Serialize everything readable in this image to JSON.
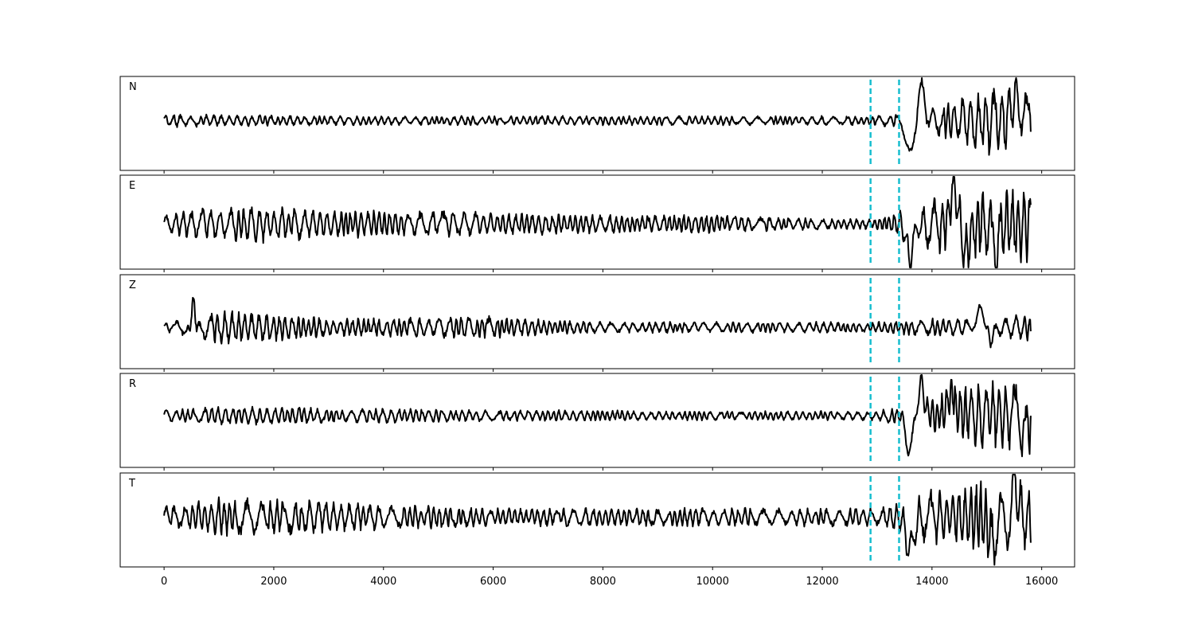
{
  "chart_data": {
    "type": "line",
    "x_ticks": [
      0,
      2000,
      4000,
      6000,
      8000,
      10000,
      12000,
      14000,
      16000
    ],
    "xlim": [
      -800,
      16600
    ],
    "x_max": 15800,
    "sharex": true,
    "grid": false,
    "markers": {
      "x": [
        12880,
        13400
      ],
      "color": "#17becf",
      "style": "dashed"
    },
    "line_color": "#000000",
    "panels": [
      {
        "label": "N",
        "baseline": 0.47,
        "amp": [
          0.08,
          0.06,
          0.06,
          0.05,
          0.05,
          0.05,
          0.05,
          0.05,
          0.05,
          0.05,
          0.05,
          0.05,
          0.05,
          0.05,
          0.15,
          0.38,
          0.36,
          0.36
        ],
        "events": [
          {
            "x": 13600,
            "a": -0.46,
            "w": 45
          },
          {
            "x": 13800,
            "a": 0.4,
            "w": 45
          },
          {
            "x": 15520,
            "a": 0.28,
            "w": 60
          }
        ],
        "end": -0.14
      },
      {
        "label": "E",
        "baseline": 0.52,
        "amp": [
          0.1,
          0.2,
          0.2,
          0.16,
          0.14,
          0.16,
          0.12,
          0.12,
          0.1,
          0.1,
          0.1,
          0.08,
          0.06,
          0.06,
          0.3,
          0.38,
          0.45,
          0.45
        ],
        "events": [
          {
            "x": 13600,
            "a": -0.4,
            "w": 45
          },
          {
            "x": 14400,
            "a": 0.42,
            "w": 45
          },
          {
            "x": 14620,
            "a": -0.35,
            "w": 45
          },
          {
            "x": 15160,
            "a": -0.38,
            "w": 45
          }
        ],
        "end": 0.24
      },
      {
        "label": "Z",
        "baseline": 0.56,
        "amp": [
          0.05,
          0.18,
          0.16,
          0.1,
          0.1,
          0.12,
          0.12,
          0.08,
          0.06,
          0.06,
          0.06,
          0.06,
          0.06,
          0.06,
          0.1,
          0.1,
          0.16,
          0.12
        ],
        "events": [
          {
            "x": 480,
            "a": -0.32,
            "w": 30
          },
          {
            "x": 520,
            "a": 0.52,
            "w": 35
          },
          {
            "x": 600,
            "a": -0.1,
            "w": 40
          },
          {
            "x": 14900,
            "a": 0.22,
            "w": 60
          },
          {
            "x": 15060,
            "a": -0.18,
            "w": 50
          }
        ],
        "end": -0.05
      },
      {
        "label": "R",
        "baseline": 0.45,
        "amp": [
          0.07,
          0.1,
          0.1,
          0.08,
          0.08,
          0.07,
          0.06,
          0.06,
          0.06,
          0.05,
          0.05,
          0.05,
          0.05,
          0.05,
          0.2,
          0.4,
          0.4,
          0.4
        ],
        "events": [
          {
            "x": 13600,
            "a": -0.45,
            "w": 45
          },
          {
            "x": 13800,
            "a": 0.38,
            "w": 45
          },
          {
            "x": 14360,
            "a": 0.28,
            "w": 45
          },
          {
            "x": 15700,
            "a": -0.28,
            "w": 45
          }
        ],
        "end": 0.0
      },
      {
        "label": "T",
        "baseline": 0.47,
        "amp": [
          0.12,
          0.22,
          0.2,
          0.18,
          0.14,
          0.12,
          0.1,
          0.1,
          0.1,
          0.1,
          0.1,
          0.1,
          0.1,
          0.1,
          0.3,
          0.4,
          0.42,
          0.42
        ],
        "events": [
          {
            "x": 13600,
            "a": -0.44,
            "w": 45
          },
          {
            "x": 15500,
            "a": 0.4,
            "w": 45
          },
          {
            "x": 15100,
            "a": -0.32,
            "w": 45
          }
        ],
        "end": -0.32
      }
    ]
  }
}
